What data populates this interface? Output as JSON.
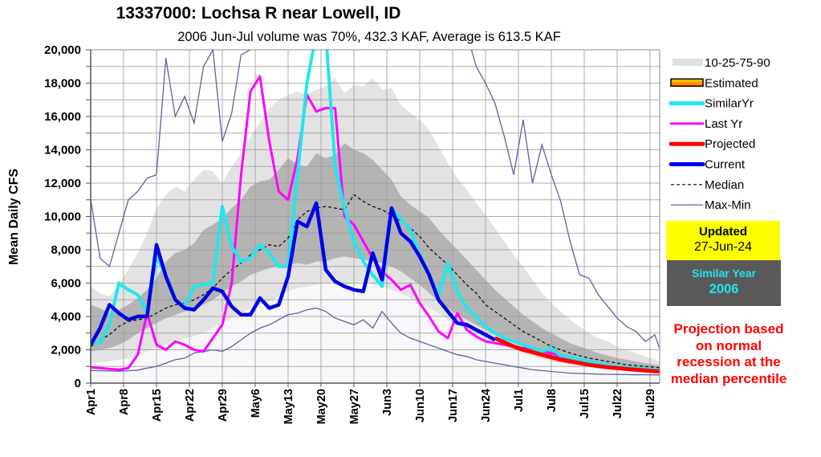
{
  "chart_data": {
    "type": "line",
    "title": "13337000: Lochsa R near Lowell, ID",
    "subtitle": "2006 Jun-Jul volume was 70%, 432.3 KAF, Average is 613.5 KAF",
    "ylabel": "Mean Daily CFS",
    "xlabel": "",
    "ylim": [
      0,
      20000
    ],
    "y_ticks": [
      0,
      2000,
      4000,
      6000,
      8000,
      10000,
      12000,
      14000,
      16000,
      18000,
      20000
    ],
    "y_tick_labels": [
      "0",
      "2,000",
      "4,000",
      "6,000",
      "8,000",
      "10,000",
      "12,000",
      "14,000",
      "16,000",
      "18,000",
      "20,000"
    ],
    "x_range_days": [
      0,
      121
    ],
    "x_ticks": [
      {
        "day": 0,
        "label": "Apr1"
      },
      {
        "day": 7,
        "label": "Apr8"
      },
      {
        "day": 14,
        "label": "Apr15"
      },
      {
        "day": 21,
        "label": "Apr22"
      },
      {
        "day": 28,
        "label": "Apr29"
      },
      {
        "day": 35,
        "label": "May6"
      },
      {
        "day": 42,
        "label": "May13"
      },
      {
        "day": 49,
        "label": "May20"
      },
      {
        "day": 56,
        "label": "May27"
      },
      {
        "day": 63,
        "label": "Jun3"
      },
      {
        "day": 70,
        "label": "Jun10"
      },
      {
        "day": 77,
        "label": "Jun17"
      },
      {
        "day": 84,
        "label": "Jun24"
      },
      {
        "day": 91,
        "label": "Jul1"
      },
      {
        "day": 98,
        "label": "Jul8"
      },
      {
        "day": 105,
        "label": "Jul15"
      },
      {
        "day": 112,
        "label": "Jul22"
      },
      {
        "day": 119,
        "label": "Jul29"
      }
    ],
    "grid": true,
    "legend_position": "right",
    "legend": [
      {
        "key": "bands",
        "label": "10-25-75-90",
        "color": "#e0e0e0"
      },
      {
        "key": "estimated",
        "label": "Estimated",
        "color": "#ff9900"
      },
      {
        "key": "similar",
        "label": "SimilarYr",
        "color": "#1ee8ee"
      },
      {
        "key": "lastyr",
        "label": "Last Yr",
        "color": "#ff00ff"
      },
      {
        "key": "projected",
        "label": "Projected",
        "color": "#ff0000"
      },
      {
        "key": "current",
        "label": "Current",
        "color": "#0000e6"
      },
      {
        "key": "median",
        "label": "Median",
        "color": "#000000"
      },
      {
        "key": "maxmin",
        "label": "Max-Min",
        "color": "#6060a0"
      }
    ],
    "colors": {
      "band_10_90": "#e3e3e3",
      "band_25_75": "#b4b4b4",
      "below_10": "#f8f8fa",
      "similar": "#1ee8ee",
      "lastyr": "#ff00ff",
      "projected": "#ff0000",
      "current": "#0000e6",
      "median": "#000000",
      "maxmin": "#6060a0"
    },
    "x_days": [
      0,
      2,
      4,
      6,
      8,
      10,
      12,
      14,
      16,
      18,
      20,
      22,
      24,
      26,
      28,
      30,
      32,
      34,
      36,
      38,
      40,
      42,
      44,
      46,
      48,
      50,
      52,
      54,
      56,
      58,
      60,
      62,
      64,
      66,
      68,
      70,
      72,
      74,
      76,
      78,
      80,
      82,
      84,
      86,
      88,
      90,
      92,
      94,
      96,
      98,
      100,
      102,
      104,
      106,
      108,
      110,
      112,
      114,
      116,
      118,
      120,
      121
    ],
    "series": [
      {
        "name": "p90",
        "values": [
          5800,
          5400,
          5200,
          5900,
          6800,
          7800,
          9000,
          10500,
          11300,
          11800,
          11500,
          12200,
          12800,
          12700,
          12000,
          13000,
          13800,
          14800,
          15600,
          16500,
          17000,
          17300,
          17500,
          17300,
          17600,
          17800,
          18300,
          17400,
          17900,
          17800,
          18300,
          17600,
          17700,
          16700,
          16200,
          15800,
          15200,
          14200,
          13200,
          12300,
          11600,
          10800,
          10100,
          9300,
          8500,
          7700,
          7000,
          6200,
          5400,
          4800,
          4300,
          3800,
          3400,
          3000,
          2700,
          2500,
          2200,
          2000,
          1800,
          1600,
          1400,
          1300
        ]
      },
      {
        "name": "p75",
        "values": [
          4700,
          4500,
          4200,
          4400,
          4700,
          5100,
          5600,
          6300,
          7300,
          7800,
          8000,
          8400,
          9200,
          9500,
          9900,
          10500,
          11000,
          11800,
          12100,
          12200,
          12800,
          13500,
          13100,
          13000,
          13800,
          13500,
          13700,
          14400,
          14000,
          13800,
          13400,
          12800,
          12200,
          11200,
          10700,
          10300,
          9900,
          9200,
          8600,
          8000,
          7400,
          6800,
          6200,
          5600,
          5100,
          4600,
          4100,
          3700,
          3300,
          3000,
          2700,
          2400,
          2200,
          2000,
          1800,
          1650,
          1500,
          1400,
          1300,
          1200,
          1100,
          1050
        ]
      },
      {
        "name": "p25",
        "values": [
          1900,
          2000,
          2100,
          2300,
          2600,
          3000,
          3300,
          3600,
          3900,
          4100,
          4300,
          4400,
          4700,
          5000,
          5400,
          5800,
          6100,
          6500,
          6700,
          6900,
          7000,
          7100,
          7200,
          7100,
          7300,
          7300,
          7500,
          7600,
          7500,
          7400,
          7300,
          7200,
          7000,
          6700,
          6300,
          5900,
          5400,
          4900,
          4500,
          4100,
          3800,
          3500,
          3200,
          2900,
          2600,
          2400,
          2200,
          2000,
          1800,
          1600,
          1450,
          1300,
          1200,
          1100,
          1000,
          950,
          900,
          850,
          800,
          780,
          760,
          750
        ]
      },
      {
        "name": "p10",
        "values": [
          1200,
          1250,
          1300,
          1400,
          1500,
          1700,
          1900,
          2100,
          2300,
          2500,
          2700,
          2800,
          3000,
          3300,
          3600,
          3900,
          4200,
          4500,
          4700,
          4900,
          5200,
          5500,
          5700,
          5800,
          5900,
          6000,
          6100,
          5900,
          6000,
          6100,
          5900,
          5800,
          5600,
          5400,
          5100,
          4800,
          4500,
          4200,
          3800,
          3500,
          3200,
          2900,
          2700,
          2400,
          2200,
          2000,
          1800,
          1600,
          1450,
          1300,
          1200,
          1100,
          1000,
          950,
          900,
          850,
          800,
          760,
          730,
          700,
          680,
          670
        ]
      },
      {
        "name": "Median",
        "values": [
          2200,
          2600,
          2900,
          3400,
          3700,
          3800,
          3900,
          4200,
          4500,
          4700,
          4800,
          5000,
          5300,
          5700,
          6300,
          6800,
          7200,
          7700,
          8000,
          8300,
          8200,
          8700,
          9800,
          10300,
          10500,
          10600,
          10500,
          10400,
          11300,
          10900,
          10600,
          10400,
          10100,
          9700,
          9300,
          8800,
          8100,
          7600,
          7100,
          6500,
          5900,
          5400,
          4700,
          4300,
          3900,
          3500,
          3100,
          2800,
          2500,
          2200,
          2000,
          1800,
          1650,
          1500,
          1400,
          1300,
          1200,
          1100,
          1050,
          1000,
          950,
          930
        ]
      },
      {
        "name": "Max",
        "values": [
          11000,
          7500,
          7000,
          9000,
          11000,
          11500,
          12300,
          12500,
          19500,
          16000,
          17200,
          15600,
          19000,
          20000,
          14500,
          16200,
          19700,
          20000,
          20500,
          21000,
          21000,
          21000,
          21000,
          21000,
          21000,
          21000,
          21000,
          21000,
          21000,
          21000,
          21000,
          21000,
          21000,
          21000,
          21000,
          21000,
          21000,
          21000,
          21000,
          21000,
          21000,
          19000,
          18000,
          16800,
          14800,
          12500,
          15800,
          12000,
          14300,
          12500,
          10900,
          8500,
          6500,
          6300,
          5300,
          4600,
          3900,
          3400,
          3100,
          2500,
          2900,
          2100
        ]
      },
      {
        "name": "Min",
        "values": [
          760,
          740,
          730,
          720,
          740,
          780,
          900,
          1000,
          1200,
          1400,
          1500,
          1800,
          1900,
          2000,
          1900,
          2200,
          2600,
          3000,
          3300,
          3500,
          3800,
          4100,
          4200,
          4400,
          4500,
          4300,
          3900,
          3700,
          3500,
          3800,
          3300,
          4300,
          3600,
          3000,
          2700,
          2500,
          2300,
          2100,
          1900,
          1700,
          1600,
          1400,
          1300,
          1200,
          1100,
          1000,
          900,
          800,
          750,
          700,
          650,
          600,
          580,
          560,
          540,
          530,
          520,
          510,
          500,
          500,
          490,
          490
        ]
      },
      {
        "name": "SimilarYr",
        "values": [
          2500,
          2400,
          3500,
          6000,
          5600,
          5300,
          4300,
          7600,
          6500,
          5000,
          4600,
          5800,
          5900,
          6000,
          10600,
          8200,
          7300,
          7500,
          8300,
          7800,
          7000,
          7000,
          12500,
          18000,
          21000,
          21000,
          13000,
          10500,
          8500,
          7300,
          6500,
          5800,
          10500,
          9800,
          9200,
          7700,
          6500,
          5300,
          7200,
          5500,
          4500,
          4000,
          3400,
          3000,
          2700,
          2500,
          2300,
          2100,
          1900,
          2100,
          1650,
          1550,
          1400,
          1300,
          1200,
          1100,
          1000,
          950,
          900,
          850,
          800,
          780
        ]
      },
      {
        "name": "Last Yr",
        "values": [
          950,
          900,
          850,
          800,
          900,
          1700,
          4200,
          2300,
          2000,
          2500,
          2300,
          2000,
          1900,
          2700,
          3500,
          6000,
          12500,
          17500,
          18400,
          14500,
          11500,
          11000,
          13500,
          17300,
          16300,
          16500,
          16500,
          10000,
          9500,
          8500,
          7500,
          6700,
          6200,
          5600,
          5900,
          4800,
          4000,
          3100,
          2700,
          4200,
          3200,
          2800,
          2500,
          2400,
          2300,
          2200,
          2100,
          2000,
          1900,
          1800,
          1600,
          1450,
          1300,
          1200,
          1100,
          1000,
          950,
          900,
          850,
          800,
          750,
          730
        ]
      },
      {
        "name": "Current",
        "values": [
          2300,
          3300,
          4700,
          4200,
          3800,
          4000,
          4000,
          8300,
          6400,
          5000,
          4500,
          4400,
          5000,
          5700,
          5500,
          4600,
          4100,
          4100,
          5100,
          4500,
          4700,
          6400,
          9700,
          9400,
          10800,
          6800,
          6100,
          5800,
          5600,
          5500,
          7800,
          6200,
          10500,
          9000,
          8500,
          7600,
          6500,
          5000,
          4300,
          3600,
          3500,
          3200,
          2900,
          2600,
          null,
          null,
          null,
          null,
          null,
          null,
          null,
          null,
          null,
          null,
          null,
          null,
          null,
          null,
          null,
          null,
          null,
          null
        ]
      },
      {
        "name": "Projected",
        "values": [
          null,
          null,
          null,
          null,
          null,
          null,
          null,
          null,
          null,
          null,
          null,
          null,
          null,
          null,
          null,
          null,
          null,
          null,
          null,
          null,
          null,
          null,
          null,
          null,
          null,
          null,
          null,
          null,
          null,
          null,
          null,
          null,
          null,
          null,
          null,
          null,
          null,
          null,
          null,
          null,
          null,
          null,
          null,
          2700,
          2450,
          2200,
          2000,
          1850,
          1700,
          1550,
          1400,
          1300,
          1200,
          1100,
          1020,
          950,
          900,
          850,
          800,
          760,
          720,
          700
        ]
      }
    ]
  },
  "side_panel": {
    "updated_label": "Updated",
    "updated_date": "27-Jun-24",
    "similar_year_label": "Similar Year",
    "similar_year_value": "2006",
    "projection_note": "Projection based on normal recession at the median percentile"
  }
}
